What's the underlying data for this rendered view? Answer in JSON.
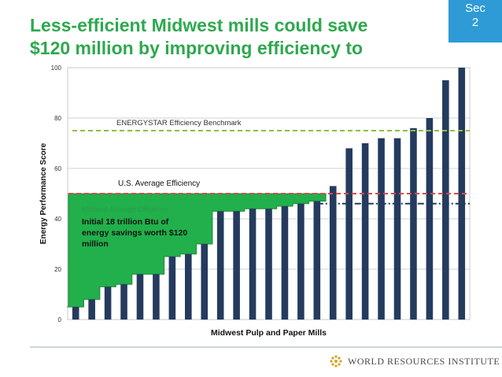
{
  "slide": {
    "title_line1": "Less-efficient Midwest mills could save",
    "title_line2": "$120 million by improving efficiency to",
    "section_label": "Sec",
    "section_number": "2",
    "footer_org": "WORLD RESOURCES INSTITUTE"
  },
  "colors": {
    "title": "#2fa84f",
    "bar": "#253b5e",
    "savings_fill": "#21b04b",
    "energystar_line": "#8dc040",
    "us_average_line": "#d64b4b",
    "midwest_average_line": "#253b5e",
    "badge": "#2e9bd6"
  },
  "chart_data": {
    "type": "bar",
    "xlabel": "Midwest Pulp and Paper Mills",
    "ylabel": "Energy Performance Score",
    "ylim": [
      0,
      100
    ],
    "yticks": [
      0,
      20,
      40,
      60,
      80,
      100
    ],
    "grid": true,
    "values": [
      5,
      8,
      13,
      14,
      18,
      18,
      25,
      26,
      30,
      43,
      43,
      44,
      44,
      45,
      46,
      47,
      53,
      68,
      70,
      72,
      72,
      76,
      80,
      95,
      100
    ],
    "reference_lines": [
      {
        "name": "ENERGYSTAR Efficiency Benchmark",
        "value": 75,
        "style": "dashed"
      },
      {
        "name": "U.S. Average Efficiency",
        "value": 50,
        "style": "dashed"
      },
      {
        "name": "Midwest Average Efficiency",
        "value": 46,
        "style": "dash-dot"
      }
    ],
    "savings_region": {
      "target_value": 50,
      "bars_covered": 16,
      "label_line1": "Initial 18 trillion Btu of",
      "label_line2": "energy savings worth $120",
      "label_line3": "million"
    }
  }
}
